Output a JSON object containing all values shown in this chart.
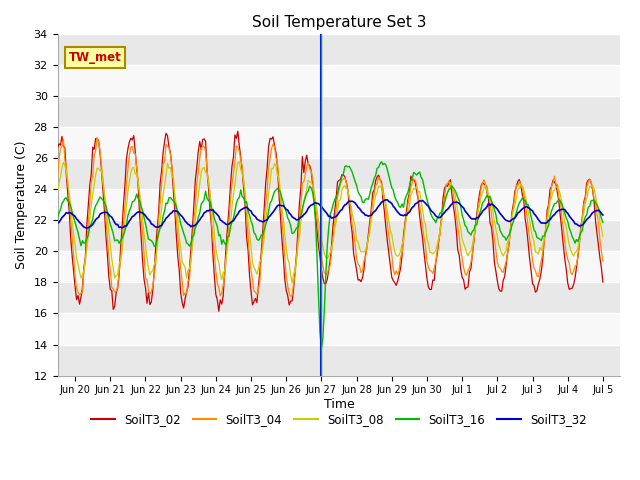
{
  "title": "Soil Temperature Set 3",
  "xlabel": "Time",
  "ylabel": "Soil Temperature (C)",
  "ylim": [
    12,
    34
  ],
  "colors": {
    "SoilT3_02": "#cc0000",
    "SoilT3_04": "#ff8c00",
    "SoilT3_08": "#cccc00",
    "SoilT3_16": "#00bb00",
    "SoilT3_32": "#0000cc"
  },
  "tick_labels": [
    "Jun 20",
    "Jun 21",
    "Jun 22",
    "Jun 23",
    "Jun 24",
    "Jun 25",
    "Jun 26",
    "Jun 27",
    "Jun 28",
    "Jun 29",
    "Jun 30",
    "Jul 1",
    "Jul 2",
    "Jul 3",
    "Jul 4",
    "Jul 5"
  ],
  "annotation_label": "TW_met",
  "vline_blue_day": 8.0,
  "vline_green_day": 8.0,
  "legend_labels": [
    "SoilT3_02",
    "SoilT3_04",
    "SoilT3_08",
    "SoilT3_16",
    "SoilT3_32"
  ]
}
